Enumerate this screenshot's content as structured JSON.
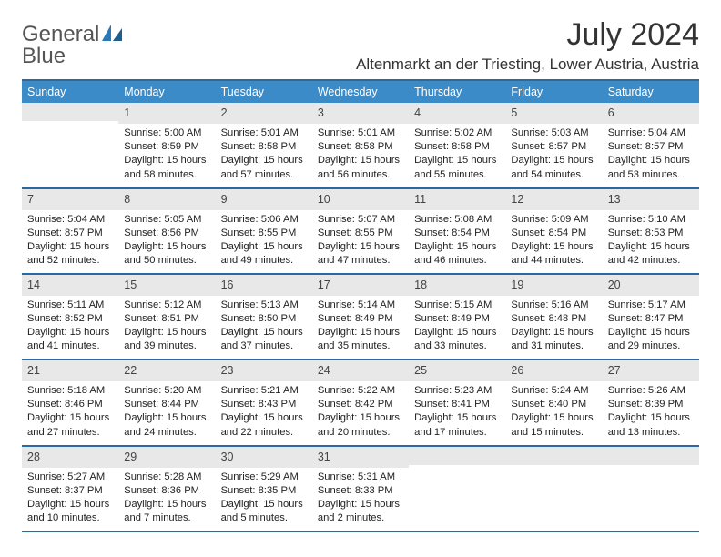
{
  "brand": {
    "text1": "General",
    "text2": "Blue"
  },
  "title": "July 2024",
  "location": "Altenmarkt an der Triesting, Lower Austria, Austria",
  "colors": {
    "header_bg": "#3b8bc8",
    "header_border": "#2a6aa0",
    "daynum_bg": "#e8e8e8",
    "brand_gray": "#555555",
    "brand_blue": "#2a7ab9"
  },
  "dow": [
    "Sunday",
    "Monday",
    "Tuesday",
    "Wednesday",
    "Thursday",
    "Friday",
    "Saturday"
  ],
  "weeks": [
    [
      {
        "n": "",
        "sr": "",
        "ss": "",
        "dl": ""
      },
      {
        "n": "1",
        "sr": "Sunrise: 5:00 AM",
        "ss": "Sunset: 8:59 PM",
        "dl": "Daylight: 15 hours and 58 minutes."
      },
      {
        "n": "2",
        "sr": "Sunrise: 5:01 AM",
        "ss": "Sunset: 8:58 PM",
        "dl": "Daylight: 15 hours and 57 minutes."
      },
      {
        "n": "3",
        "sr": "Sunrise: 5:01 AM",
        "ss": "Sunset: 8:58 PM",
        "dl": "Daylight: 15 hours and 56 minutes."
      },
      {
        "n": "4",
        "sr": "Sunrise: 5:02 AM",
        "ss": "Sunset: 8:58 PM",
        "dl": "Daylight: 15 hours and 55 minutes."
      },
      {
        "n": "5",
        "sr": "Sunrise: 5:03 AM",
        "ss": "Sunset: 8:57 PM",
        "dl": "Daylight: 15 hours and 54 minutes."
      },
      {
        "n": "6",
        "sr": "Sunrise: 5:04 AM",
        "ss": "Sunset: 8:57 PM",
        "dl": "Daylight: 15 hours and 53 minutes."
      }
    ],
    [
      {
        "n": "7",
        "sr": "Sunrise: 5:04 AM",
        "ss": "Sunset: 8:57 PM",
        "dl": "Daylight: 15 hours and 52 minutes."
      },
      {
        "n": "8",
        "sr": "Sunrise: 5:05 AM",
        "ss": "Sunset: 8:56 PM",
        "dl": "Daylight: 15 hours and 50 minutes."
      },
      {
        "n": "9",
        "sr": "Sunrise: 5:06 AM",
        "ss": "Sunset: 8:55 PM",
        "dl": "Daylight: 15 hours and 49 minutes."
      },
      {
        "n": "10",
        "sr": "Sunrise: 5:07 AM",
        "ss": "Sunset: 8:55 PM",
        "dl": "Daylight: 15 hours and 47 minutes."
      },
      {
        "n": "11",
        "sr": "Sunrise: 5:08 AM",
        "ss": "Sunset: 8:54 PM",
        "dl": "Daylight: 15 hours and 46 minutes."
      },
      {
        "n": "12",
        "sr": "Sunrise: 5:09 AM",
        "ss": "Sunset: 8:54 PM",
        "dl": "Daylight: 15 hours and 44 minutes."
      },
      {
        "n": "13",
        "sr": "Sunrise: 5:10 AM",
        "ss": "Sunset: 8:53 PM",
        "dl": "Daylight: 15 hours and 42 minutes."
      }
    ],
    [
      {
        "n": "14",
        "sr": "Sunrise: 5:11 AM",
        "ss": "Sunset: 8:52 PM",
        "dl": "Daylight: 15 hours and 41 minutes."
      },
      {
        "n": "15",
        "sr": "Sunrise: 5:12 AM",
        "ss": "Sunset: 8:51 PM",
        "dl": "Daylight: 15 hours and 39 minutes."
      },
      {
        "n": "16",
        "sr": "Sunrise: 5:13 AM",
        "ss": "Sunset: 8:50 PM",
        "dl": "Daylight: 15 hours and 37 minutes."
      },
      {
        "n": "17",
        "sr": "Sunrise: 5:14 AM",
        "ss": "Sunset: 8:49 PM",
        "dl": "Daylight: 15 hours and 35 minutes."
      },
      {
        "n": "18",
        "sr": "Sunrise: 5:15 AM",
        "ss": "Sunset: 8:49 PM",
        "dl": "Daylight: 15 hours and 33 minutes."
      },
      {
        "n": "19",
        "sr": "Sunrise: 5:16 AM",
        "ss": "Sunset: 8:48 PM",
        "dl": "Daylight: 15 hours and 31 minutes."
      },
      {
        "n": "20",
        "sr": "Sunrise: 5:17 AM",
        "ss": "Sunset: 8:47 PM",
        "dl": "Daylight: 15 hours and 29 minutes."
      }
    ],
    [
      {
        "n": "21",
        "sr": "Sunrise: 5:18 AM",
        "ss": "Sunset: 8:46 PM",
        "dl": "Daylight: 15 hours and 27 minutes."
      },
      {
        "n": "22",
        "sr": "Sunrise: 5:20 AM",
        "ss": "Sunset: 8:44 PM",
        "dl": "Daylight: 15 hours and 24 minutes."
      },
      {
        "n": "23",
        "sr": "Sunrise: 5:21 AM",
        "ss": "Sunset: 8:43 PM",
        "dl": "Daylight: 15 hours and 22 minutes."
      },
      {
        "n": "24",
        "sr": "Sunrise: 5:22 AM",
        "ss": "Sunset: 8:42 PM",
        "dl": "Daylight: 15 hours and 20 minutes."
      },
      {
        "n": "25",
        "sr": "Sunrise: 5:23 AM",
        "ss": "Sunset: 8:41 PM",
        "dl": "Daylight: 15 hours and 17 minutes."
      },
      {
        "n": "26",
        "sr": "Sunrise: 5:24 AM",
        "ss": "Sunset: 8:40 PM",
        "dl": "Daylight: 15 hours and 15 minutes."
      },
      {
        "n": "27",
        "sr": "Sunrise: 5:26 AM",
        "ss": "Sunset: 8:39 PM",
        "dl": "Daylight: 15 hours and 13 minutes."
      }
    ],
    [
      {
        "n": "28",
        "sr": "Sunrise: 5:27 AM",
        "ss": "Sunset: 8:37 PM",
        "dl": "Daylight: 15 hours and 10 minutes."
      },
      {
        "n": "29",
        "sr": "Sunrise: 5:28 AM",
        "ss": "Sunset: 8:36 PM",
        "dl": "Daylight: 15 hours and 7 minutes."
      },
      {
        "n": "30",
        "sr": "Sunrise: 5:29 AM",
        "ss": "Sunset: 8:35 PM",
        "dl": "Daylight: 15 hours and 5 minutes."
      },
      {
        "n": "31",
        "sr": "Sunrise: 5:31 AM",
        "ss": "Sunset: 8:33 PM",
        "dl": "Daylight: 15 hours and 2 minutes."
      },
      {
        "n": "",
        "sr": "",
        "ss": "",
        "dl": ""
      },
      {
        "n": "",
        "sr": "",
        "ss": "",
        "dl": ""
      },
      {
        "n": "",
        "sr": "",
        "ss": "",
        "dl": ""
      }
    ]
  ]
}
